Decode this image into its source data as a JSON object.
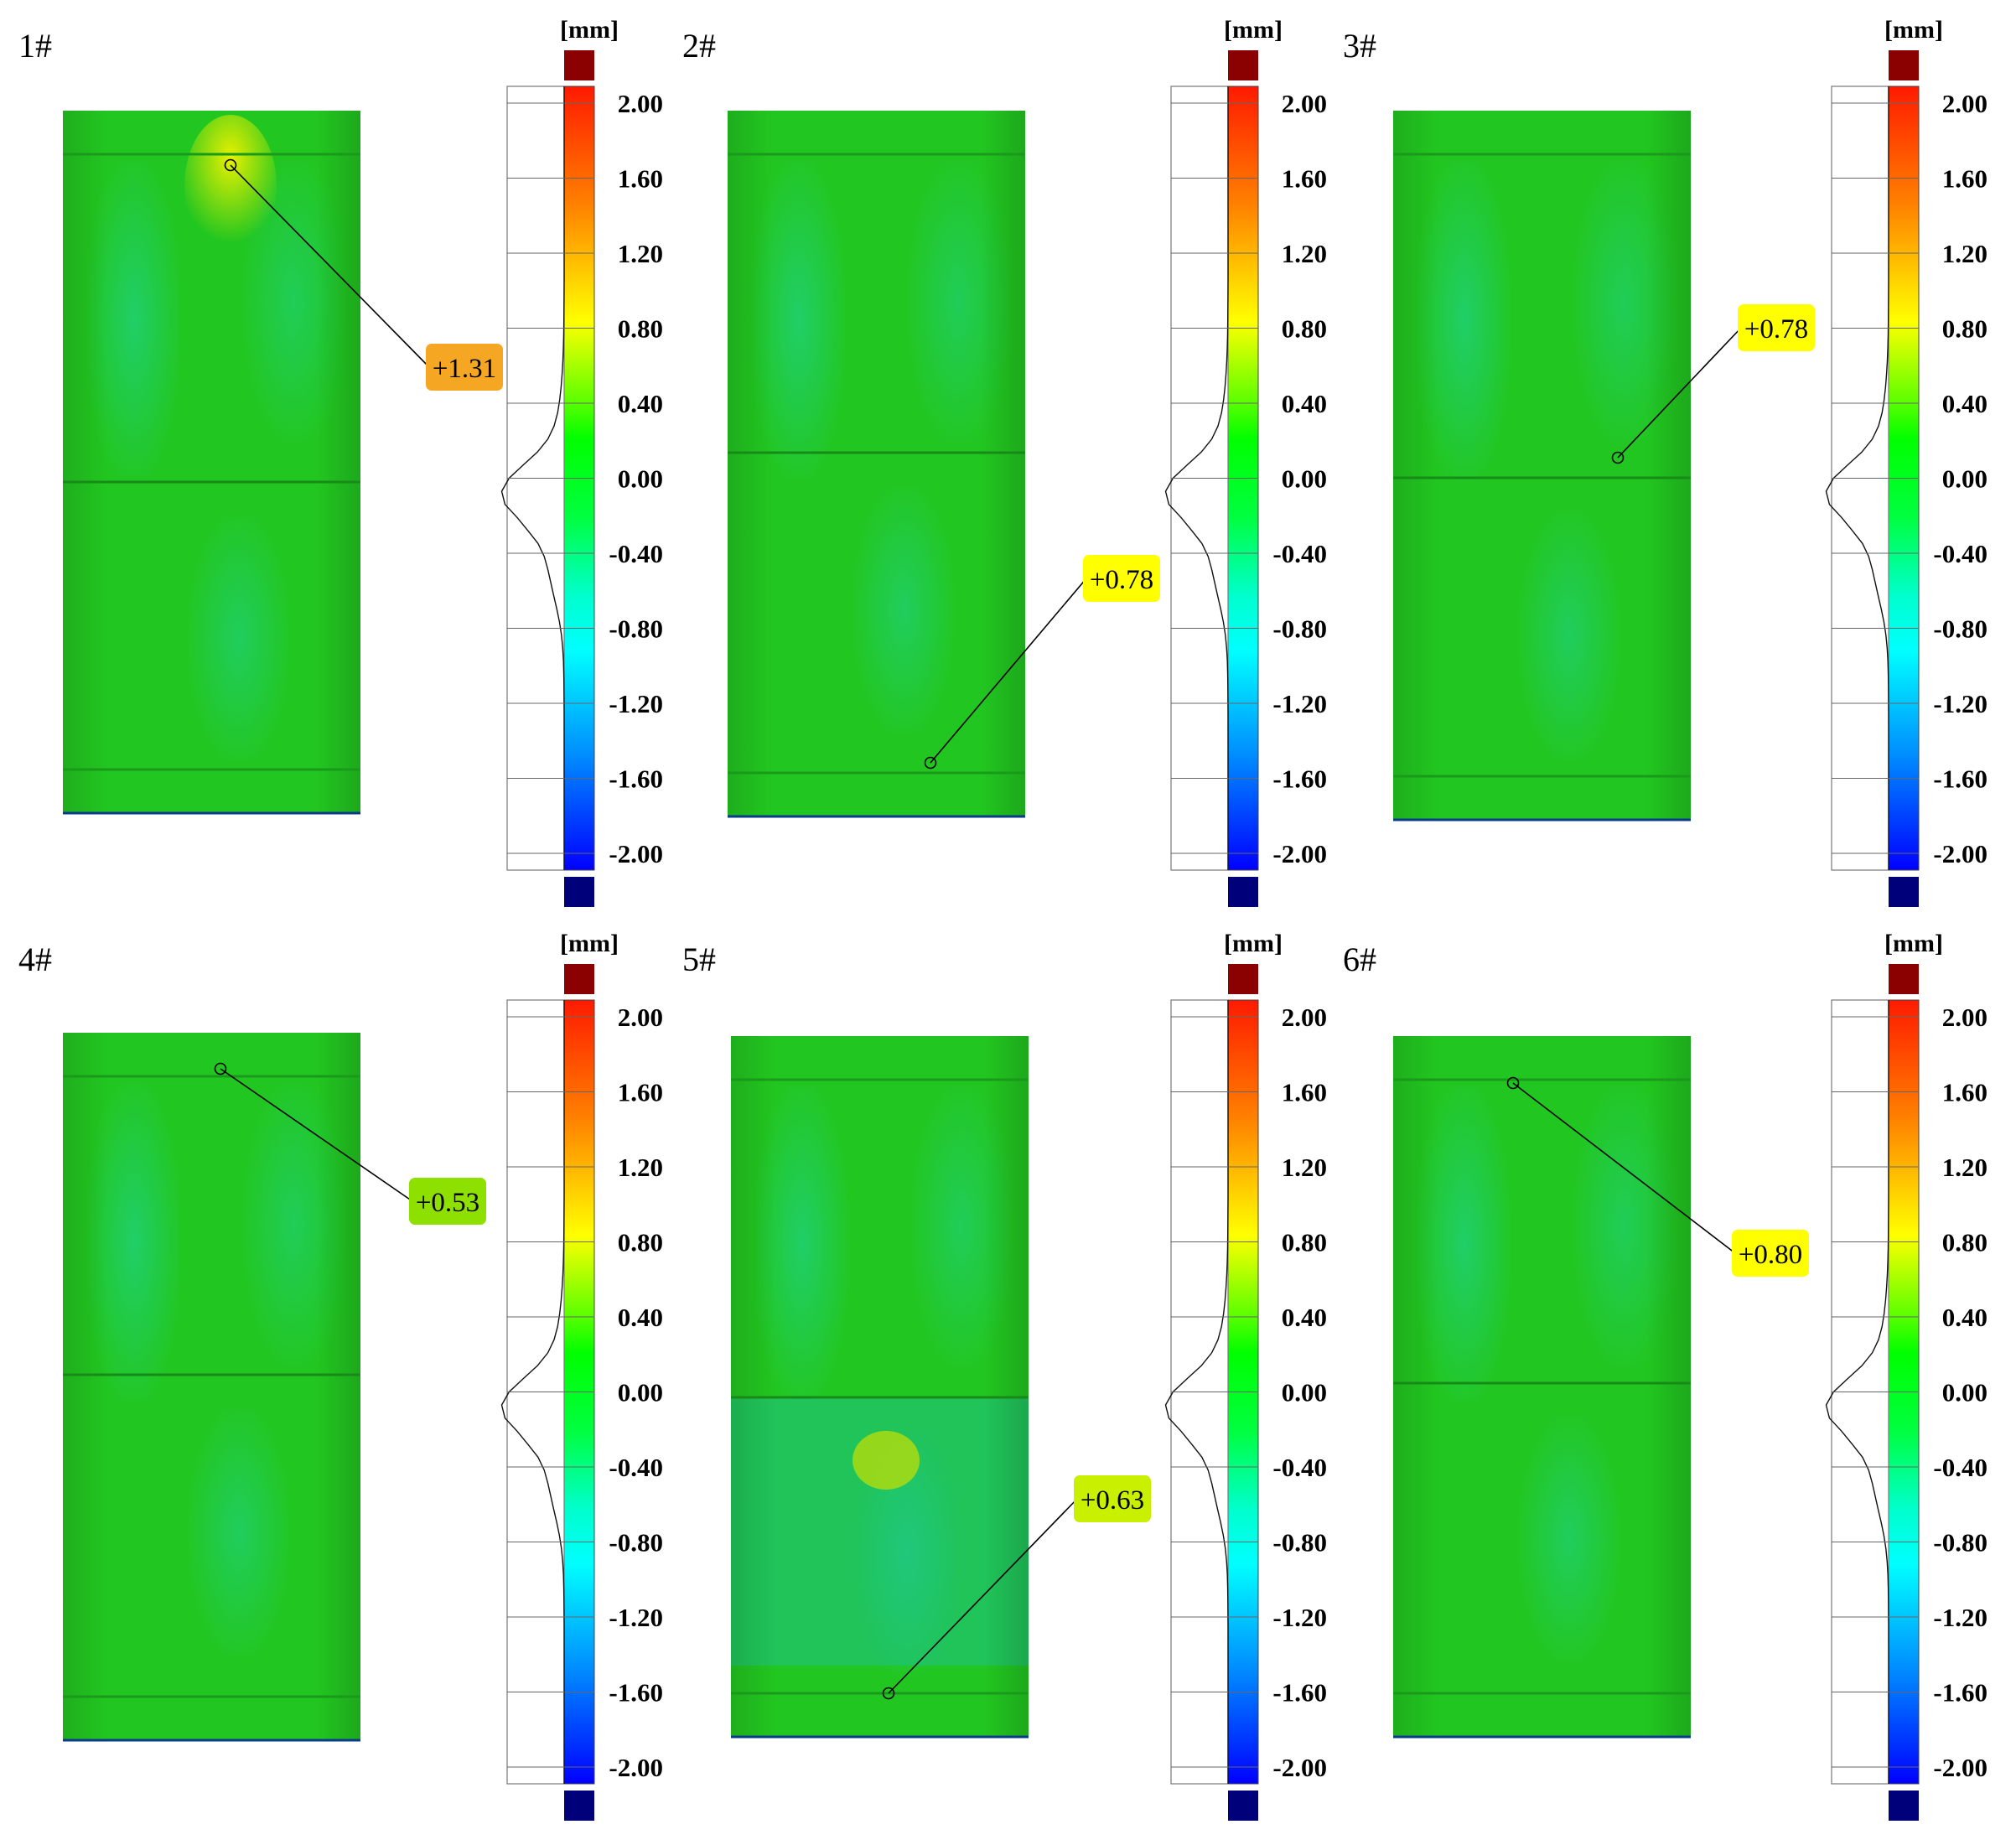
{
  "panels": [
    {
      "id": "1#",
      "callout": "+1.31",
      "callout_color": "#f5a623",
      "cylinder_color": "#22c620"
    },
    {
      "id": "2#",
      "callout": "+0.78",
      "callout_color": "#ffff00",
      "cylinder_color": "#22c620"
    },
    {
      "id": "3#",
      "callout": "+0.78",
      "callout_color": "#ffff00",
      "cylinder_color": "#22c620"
    },
    {
      "id": "4#",
      "callout": "+0.53",
      "callout_color": "#8ee000",
      "cylinder_color": "#22c620"
    },
    {
      "id": "5#",
      "callout": "+0.63",
      "callout_color": "#c8f000",
      "cylinder_color": "#22c620"
    },
    {
      "id": "6#",
      "callout": "+0.80",
      "callout_color": "#ffff00",
      "cylinder_color": "#22c620"
    }
  ],
  "scale": {
    "unit": "[mm]",
    "ticks": [
      "2.00",
      "1.60",
      "1.20",
      "0.80",
      "0.40",
      "0.00",
      "-0.40",
      "-0.80",
      "-1.20",
      "-1.60",
      "-2.00"
    ],
    "range": [
      -2.0,
      2.0
    ],
    "over_color": "#8b0000",
    "under_color": "#00007a",
    "gradient": [
      "#ff0000",
      "#ff8000",
      "#ffff00",
      "#00ff00",
      "#00ff00",
      "#00ffff",
      "#0000ff"
    ]
  }
}
